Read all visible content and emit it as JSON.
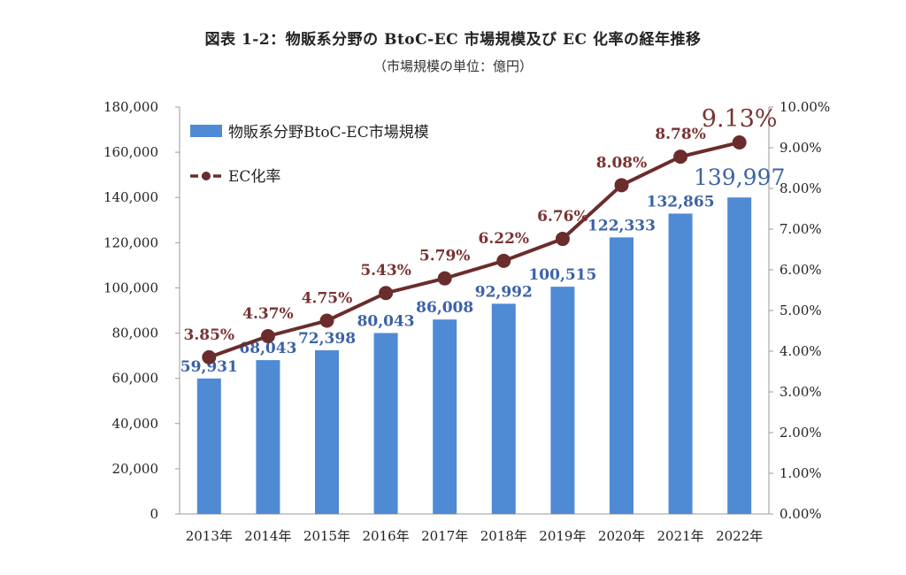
{
  "header": {
    "title": "図表 1-2：物販系分野の BtoC-EC 市場規模及び EC 化率の経年推移",
    "subtitle": "（市場規模の単位：億円）"
  },
  "colors": {
    "bar": "#4f8ad5",
    "line": "#6b2c2c",
    "bar_label": "#3b62a8",
    "line_label": "#7a3232"
  },
  "chart_data": {
    "type": "bar",
    "categories": [
      "2013年",
      "2014年",
      "2015年",
      "2016年",
      "2017年",
      "2018年",
      "2019年",
      "2020年",
      "2021年",
      "2022年"
    ],
    "series": [
      {
        "name": "物販系分野BtoC-EC市場規模",
        "type": "bar",
        "axis": "left",
        "values": [
          59931,
          68043,
          72398,
          80043,
          86008,
          92992,
          100515,
          122333,
          132865,
          139997
        ],
        "labels": [
          "59,931",
          "68,043",
          "72,398",
          "80,043",
          "86,008",
          "92,992",
          "100,515",
          "122,333",
          "132,865",
          "139,997"
        ]
      },
      {
        "name": "EC化率",
        "type": "line",
        "axis": "right",
        "values": [
          3.85,
          4.37,
          4.75,
          5.43,
          5.79,
          6.22,
          6.76,
          8.08,
          8.78,
          9.13
        ],
        "labels": [
          "3.85%",
          "4.37%",
          "4.75%",
          "5.43%",
          "5.79%",
          "6.22%",
          "6.76%",
          "8.08%",
          "8.78%",
          "9.13%"
        ]
      }
    ],
    "y_left": {
      "lim": [
        0,
        180000
      ],
      "ticks": [
        "0",
        "20,000",
        "40,000",
        "60,000",
        "80,000",
        "100,000",
        "120,000",
        "140,000",
        "160,000",
        "180,000"
      ]
    },
    "y_right": {
      "lim": [
        0,
        10
      ],
      "ticks": [
        "0.00%",
        "1.00%",
        "2.00%",
        "3.00%",
        "4.00%",
        "5.00%",
        "6.00%",
        "7.00%",
        "8.00%",
        "9.00%",
        "10.00%"
      ]
    },
    "legend": {
      "position": "top-left"
    },
    "grid": false
  }
}
